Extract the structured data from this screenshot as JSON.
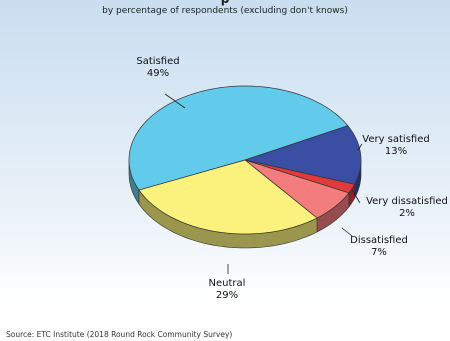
{
  "chart_data": {
    "type": "pie",
    "title_fragment": "p",
    "subtitle": "by percentage of respondents (excluding don't knows)",
    "slices": [
      {
        "label": "Satisfied",
        "value": 49,
        "value_label": "49%",
        "color": "#62cbec"
      },
      {
        "label": "Very satisfied",
        "value": 13,
        "value_label": "13%",
        "color": "#3a4ea4"
      },
      {
        "label": "Very dissatisfied",
        "value": 2,
        "value_label": "2%",
        "color": "#e03a3a"
      },
      {
        "label": "Dissatisfied",
        "value": 7,
        "value_label": "7%",
        "color": "#f37c7c"
      },
      {
        "label": "Neutral",
        "value": 29,
        "value_label": "29%",
        "color": "#faf27c"
      }
    ],
    "source": "Source:  ETC Institute (2018 Round Rock Community Survey)"
  }
}
